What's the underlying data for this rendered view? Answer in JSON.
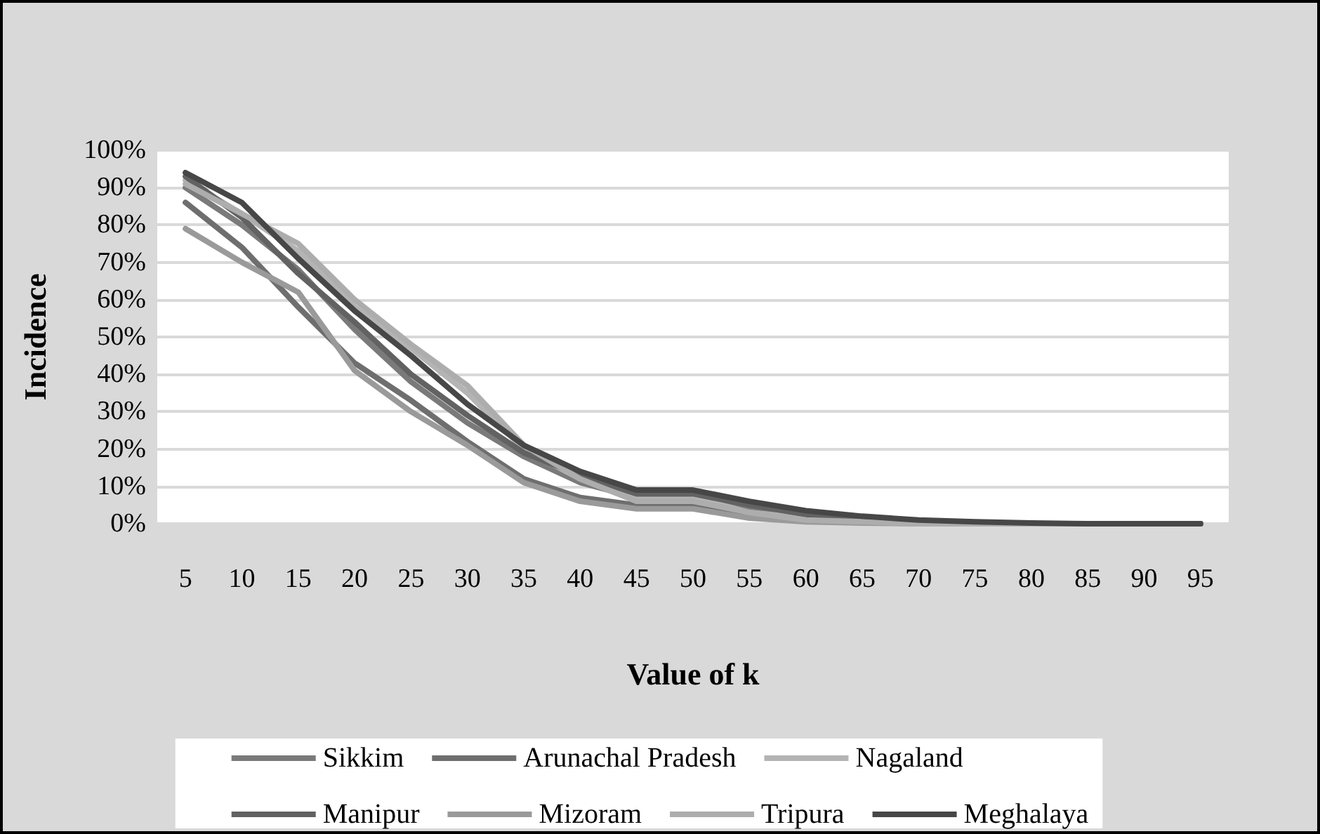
{
  "chart_data": {
    "type": "line",
    "xlabel": "Value of k",
    "ylabel": "Incidence",
    "categories": [
      "5",
      "10",
      "15",
      "20",
      "25",
      "30",
      "35",
      "40",
      "45",
      "50",
      "55",
      "60",
      "65",
      "70",
      "75",
      "80",
      "85",
      "90",
      "95"
    ],
    "ylim": [
      0,
      100
    ],
    "yticks": [
      {
        "value": 0,
        "label": "0%"
      },
      {
        "value": 10,
        "label": "10%"
      },
      {
        "value": 20,
        "label": "20%"
      },
      {
        "value": 30,
        "label": "30%"
      },
      {
        "value": 40,
        "label": "40%"
      },
      {
        "value": 50,
        "label": "50%"
      },
      {
        "value": 60,
        "label": "60%"
      },
      {
        "value": 70,
        "label": "70%"
      },
      {
        "value": 80,
        "label": "80%"
      },
      {
        "value": 90,
        "label": "90%"
      },
      {
        "value": 100,
        "label": "100%"
      }
    ],
    "grid": "y",
    "legend": "bottom",
    "marker": "none",
    "line_style": "solid",
    "series": [
      {
        "name": "Sikkim",
        "color": "#7a7a7a",
        "values": [
          90,
          80,
          68,
          52,
          38,
          27,
          18,
          11,
          7,
          7,
          4,
          2,
          1,
          0.5,
          0.2,
          0,
          0,
          0,
          0
        ]
      },
      {
        "name": "Arunachal Pradesh",
        "color": "#6e6e6e",
        "values": [
          86,
          74,
          58,
          43,
          33,
          22,
          12,
          7,
          5,
          5,
          2,
          1,
          0.5,
          0.2,
          0,
          0,
          0,
          0,
          0
        ]
      },
      {
        "name": "Nagaland",
        "color": "#b4b4b4",
        "values": [
          92,
          83,
          73,
          58,
          47,
          35,
          20,
          12,
          7,
          7,
          3,
          1.5,
          0.5,
          0.2,
          0,
          0,
          0,
          0,
          0
        ]
      },
      {
        "name": "Manipur",
        "color": "#626262",
        "values": [
          93,
          82,
          67,
          54,
          40,
          29,
          19,
          13,
          8,
          8,
          5,
          2.5,
          1,
          0.5,
          0.2,
          0,
          0,
          0,
          0
        ]
      },
      {
        "name": "Mizoram",
        "color": "#9a9a9a",
        "values": [
          79,
          70,
          62,
          41,
          30,
          21,
          11,
          6,
          4,
          4,
          1.5,
          0.5,
          0.2,
          0,
          0,
          0,
          0,
          0,
          0
        ]
      },
      {
        "name": "Tripura",
        "color": "#adadad",
        "values": [
          91,
          83,
          75,
          60,
          48,
          37,
          21,
          12,
          6,
          6,
          3,
          1,
          0.5,
          0,
          0,
          0,
          0,
          0,
          0
        ]
      },
      {
        "name": "Meghalaya",
        "color": "#474747",
        "values": [
          94,
          86,
          71,
          57,
          45,
          32,
          21,
          14,
          9,
          9,
          6,
          3.5,
          2,
          1,
          0.5,
          0.2,
          0,
          0,
          0
        ]
      }
    ]
  }
}
